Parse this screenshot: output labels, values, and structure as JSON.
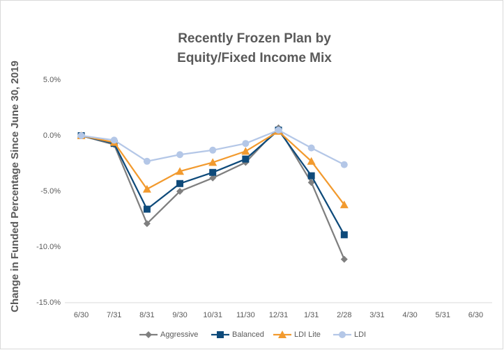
{
  "chart_data": {
    "type": "line",
    "title": [
      "Recently Frozen Plan by",
      "Equity/Fixed Income Mix"
    ],
    "y_label": "Change in Funded Percentage Since June 30, 2019",
    "categories": [
      "6/30",
      "7/31",
      "8/31",
      "9/30",
      "10/31",
      "11/30",
      "12/31",
      "1/31",
      "2/28",
      "3/31",
      "4/30",
      "5/31",
      "6/30"
    ],
    "series": [
      {
        "name": "Aggressive",
        "color": "#7f7f7f",
        "marker": "diamond",
        "values": [
          0.0,
          -0.8,
          -7.9,
          -5.0,
          -3.8,
          -2.4,
          0.7,
          -4.2,
          -11.1,
          null,
          null,
          null,
          null
        ]
      },
      {
        "name": "Balanced",
        "color": "#0e4a7a",
        "marker": "square",
        "values": [
          0.0,
          -0.7,
          -6.6,
          -4.3,
          -3.3,
          -2.1,
          0.5,
          -3.6,
          -8.9,
          null,
          null,
          null,
          null
        ]
      },
      {
        "name": "LDI Lite",
        "color": "#f29a2e",
        "marker": "triangle",
        "values": [
          0.0,
          -0.6,
          -4.8,
          -3.2,
          -2.4,
          -1.4,
          0.4,
          -2.3,
          -6.2,
          null,
          null,
          null,
          null
        ]
      },
      {
        "name": "LDI",
        "color": "#b4c7e7",
        "marker": "circle",
        "values": [
          0.0,
          -0.4,
          -2.3,
          -1.7,
          -1.3,
          -0.7,
          0.5,
          -1.1,
          -2.6,
          null,
          null,
          null,
          null
        ]
      }
    ],
    "ylim": [
      -15,
      5
    ],
    "yticks": [
      {
        "value": 5,
        "label": "5.0%"
      },
      {
        "value": 0,
        "label": "0.0%"
      },
      {
        "value": -5,
        "label": "-5.0%"
      },
      {
        "value": -10,
        "label": "-10.0%"
      },
      {
        "value": -15,
        "label": "-15.0%"
      }
    ],
    "grid": false,
    "legend": "bottom"
  }
}
